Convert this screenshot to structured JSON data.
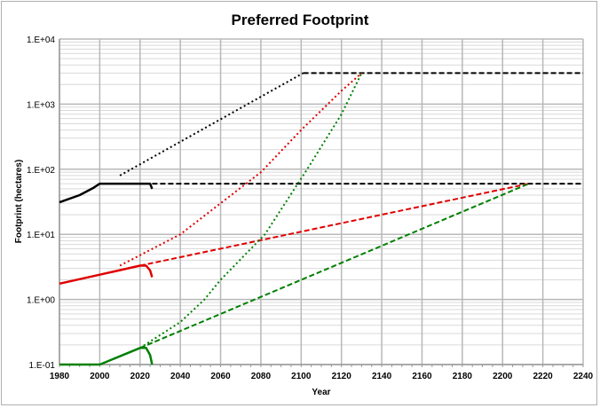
{
  "chart_data": {
    "type": "line",
    "title": "Preferred Footprint",
    "xlabel": "Year",
    "ylabel": "Footprint (hectares)",
    "xlim": [
      1980,
      2240
    ],
    "x_major_step": 20,
    "x_minor_step": 5,
    "ylim": [
      0.1,
      10000
    ],
    "yscale": "log",
    "grid": true,
    "x_tick_labels": [
      "1980",
      "2000",
      "2020",
      "2040",
      "2060",
      "2080",
      "2100",
      "2120",
      "2140",
      "2160",
      "2180",
      "2200",
      "2220",
      "2240"
    ],
    "y_tick_labels": [
      "1.E-01",
      "1.E+00",
      "1.E+01",
      "1.E+02",
      "1.E+03",
      "1.E+04"
    ],
    "series": [
      {
        "color": "#000000",
        "style": "solid",
        "points": [
          [
            1980,
            31
          ],
          [
            1990,
            40
          ],
          [
            1997,
            52
          ],
          [
            2000,
            60
          ],
          [
            2025,
            60
          ],
          [
            2026,
            50
          ]
        ]
      },
      {
        "color": "#000000",
        "style": "dashed",
        "points": [
          [
            2026,
            60
          ],
          [
            2240,
            60
          ]
        ]
      },
      {
        "color": "#000000",
        "style": "dotted",
        "points": [
          [
            2010,
            80
          ],
          [
            2101,
            3000
          ]
        ]
      },
      {
        "color": "#000000",
        "style": "dashed",
        "points": [
          [
            2101,
            3000
          ],
          [
            2240,
            3000
          ]
        ]
      },
      {
        "color": "#e00000",
        "style": "solid",
        "points": [
          [
            1980,
            1.75
          ],
          [
            2000,
            2.4
          ],
          [
            2020,
            3.3
          ],
          [
            2023,
            3.3
          ],
          [
            2025,
            2.8
          ],
          [
            2026,
            2.2
          ]
        ]
      },
      {
        "color": "#e00000",
        "style": "dotted",
        "points": [
          [
            2010,
            3.3
          ],
          [
            2040,
            10
          ],
          [
            2060,
            30
          ],
          [
            2080,
            90
          ],
          [
            2100,
            400
          ],
          [
            2120,
            1600
          ],
          [
            2130,
            3000
          ]
        ]
      },
      {
        "color": "#e00000",
        "style": "dashed",
        "points": [
          [
            2020,
            3.3
          ],
          [
            2213,
            60
          ]
        ]
      },
      {
        "color": "#008000",
        "style": "solid",
        "points": [
          [
            1980,
            0.1
          ],
          [
            2000,
            0.1
          ],
          [
            2020,
            0.18
          ],
          [
            2023,
            0.18
          ],
          [
            2025,
            0.14
          ],
          [
            2026,
            0.1
          ]
        ]
      },
      {
        "color": "#008000",
        "style": "dotted",
        "points": [
          [
            2020,
            0.18
          ],
          [
            2040,
            0.45
          ],
          [
            2052,
            1
          ],
          [
            2060,
            2
          ],
          [
            2082,
            10
          ],
          [
            2103,
            100
          ],
          [
            2120,
            700
          ],
          [
            2130,
            3000
          ]
        ]
      },
      {
        "color": "#008000",
        "style": "dashed",
        "points": [
          [
            2020,
            0.18
          ],
          [
            2213,
            60
          ]
        ]
      }
    ]
  }
}
